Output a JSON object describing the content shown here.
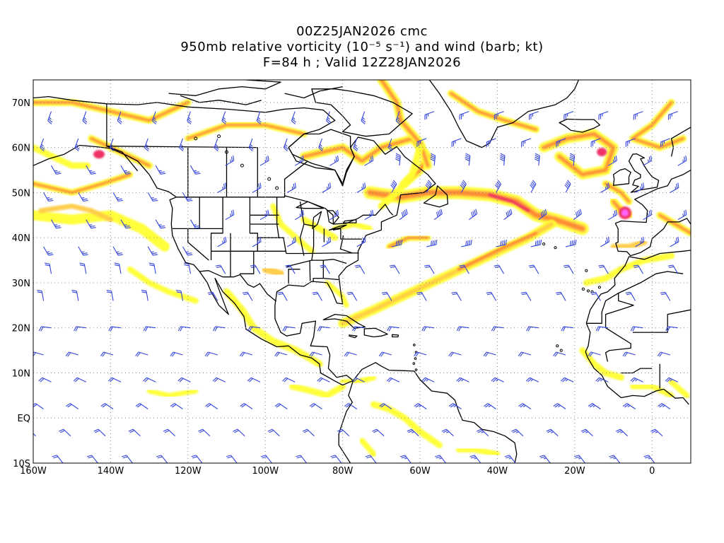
{
  "titles": {
    "line1": "00Z25JAN2026 cmc",
    "line2": "950mb relative vorticity (10⁻⁵ s⁻¹) and wind (barb; kt)",
    "line3": "F=84 h ; Valid 12Z28JAN2026"
  },
  "map": {
    "lon_range": [
      -160,
      10
    ],
    "lat_range": [
      -10,
      75
    ],
    "x_tick_labels": [
      {
        "lon": -160,
        "label": "160W"
      },
      {
        "lon": -140,
        "label": "140W"
      },
      {
        "lon": -120,
        "label": "120W"
      },
      {
        "lon": -100,
        "label": "100W"
      },
      {
        "lon": -80,
        "label": "80W"
      },
      {
        "lon": -60,
        "label": "60W"
      },
      {
        "lon": -40,
        "label": "40W"
      },
      {
        "lon": -20,
        "label": "20W"
      },
      {
        "lon": 0,
        "label": "0"
      }
    ],
    "y_tick_labels": [
      {
        "lat": -10,
        "label": "10S"
      },
      {
        "lat": 0,
        "label": "EQ"
      },
      {
        "lat": 10,
        "label": "10N"
      },
      {
        "lat": 20,
        "label": "20N"
      },
      {
        "lat": 30,
        "label": "30N"
      },
      {
        "lat": 40,
        "label": "40N"
      },
      {
        "lat": 50,
        "label": "50N"
      },
      {
        "lat": 60,
        "label": "60N"
      },
      {
        "lat": 70,
        "label": "70N"
      }
    ],
    "grid": "dotted",
    "colors": {
      "low": "#ffff33",
      "mid": "#ffcc44",
      "high": "#ff8833",
      "higher": "#ee3366",
      "peak": "#ff66ff",
      "barb": "#3344dd",
      "coast": "#000000"
    }
  }
}
